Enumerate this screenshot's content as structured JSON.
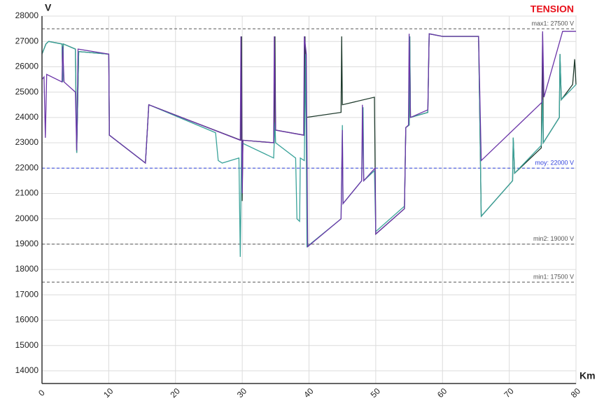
{
  "chart_data": {
    "type": "line",
    "title": "TENSION",
    "y_label": "V",
    "x_label": "Km",
    "title_color": "#e8101a",
    "grid": true,
    "xlim": [
      0,
      80
    ],
    "xticks": [
      0,
      10,
      20,
      30,
      40,
      50,
      60,
      70,
      80
    ],
    "ylim": [
      13500,
      28000
    ],
    "yticks": [
      14000,
      15000,
      16000,
      17000,
      18000,
      19000,
      20000,
      21000,
      22000,
      23000,
      24000,
      25000,
      26000,
      27000,
      28000
    ],
    "reference_lines": [
      {
        "value": 27500,
        "label": "max1: 27500 V",
        "color": "#555555"
      },
      {
        "value": 22000,
        "label": "moy: 22000 V",
        "color": "#3344dd"
      },
      {
        "value": 19000,
        "label": "min2: 19000 V",
        "color": "#555555"
      },
      {
        "value": 17500,
        "label": "min1: 17500 V",
        "color": "#555555"
      }
    ],
    "series": [
      {
        "color": "#1e3a2c",
        "x": [
          0,
          0.6,
          1,
          3,
          3.1,
          3.2,
          5,
          5.2,
          5.5,
          10,
          10.1,
          15.5,
          16,
          29.8,
          29.9,
          30,
          30.1,
          34.8,
          34.9,
          35,
          39.3,
          39.4,
          39.6,
          44.8,
          44.9,
          45,
          49.8,
          50,
          54.3,
          54.5,
          55,
          55.1,
          55.2,
          57.8,
          58,
          60,
          65.4,
          65.8,
          70.5,
          70.6,
          70.8,
          74.8,
          75,
          75.1,
          77.5,
          77.6,
          77.8,
          79.5,
          79.8,
          80
        ],
        "values": [
          26500,
          26900,
          27000,
          26900,
          25400,
          26900,
          26700,
          22600,
          26600,
          26500,
          23300,
          22200,
          24500,
          23100,
          27200,
          20700,
          23100,
          23000,
          27200,
          23500,
          23300,
          27200,
          24000,
          24200,
          27200,
          24500,
          24800,
          19400,
          20400,
          23600,
          23700,
          27200,
          24000,
          24200,
          27300,
          27200,
          27200,
          20100,
          21500,
          23200,
          21800,
          22800,
          27300,
          23000,
          24000,
          26500,
          24700,
          25300,
          26300,
          25300
        ]
      },
      {
        "color": "#3aa39a",
        "x": [
          0,
          0.6,
          1,
          3,
          3.1,
          3.2,
          5,
          5.2,
          5.5,
          10,
          10.1,
          15.5,
          16,
          26,
          26.4,
          27,
          29.5,
          29.7,
          29.9,
          34.7,
          34.9,
          35,
          38,
          38.2,
          38.6,
          38.7,
          39.3,
          39.5,
          39.7,
          44.8,
          45,
          45.1,
          47.9,
          48.1,
          48.2,
          49.8,
          50,
          54.3,
          54.5,
          55,
          55.1,
          55.2,
          57.8,
          58,
          60,
          65.4,
          65.8,
          70.5,
          70.6,
          70.8,
          74.8,
          75,
          75.1,
          77.5,
          77.6,
          77.8,
          80
        ],
        "values": [
          26500,
          26900,
          27000,
          26900,
          25400,
          26900,
          26700,
          22600,
          26600,
          26500,
          23300,
          22200,
          24500,
          23400,
          22300,
          22200,
          22400,
          18500,
          23000,
          22400,
          23800,
          23000,
          22400,
          20000,
          19900,
          22400,
          22300,
          26500,
          18900,
          20000,
          23700,
          20600,
          21500,
          24400,
          21500,
          21900,
          19500,
          20500,
          23600,
          23700,
          27200,
          24000,
          24200,
          27300,
          27200,
          27200,
          20100,
          21500,
          23200,
          21800,
          22900,
          24700,
          23000,
          24000,
          26500,
          24700,
          25300
        ]
      },
      {
        "color": "#6b35a8",
        "x": [
          0,
          0.3,
          0.5,
          0.7,
          3,
          3.1,
          3.3,
          5,
          5.2,
          5.4,
          10,
          10.1,
          15.5,
          16,
          29.7,
          29.8,
          30,
          30.1,
          34.7,
          34.8,
          35,
          39.2,
          39.3,
          39.6,
          39.8,
          44.8,
          45,
          45.1,
          47.9,
          48,
          48.2,
          49.9,
          50,
          54.3,
          54.5,
          54.9,
          55,
          55.2,
          57.8,
          58,
          60,
          65.4,
          65.8,
          66.2,
          74.9,
          75,
          75.2,
          78,
          80
        ],
        "values": [
          25500,
          25600,
          23200,
          25700,
          25400,
          26800,
          25400,
          25000,
          22700,
          26700,
          26500,
          23300,
          22200,
          24500,
          23100,
          27200,
          21000,
          23100,
          23000,
          27200,
          23500,
          23300,
          27200,
          26500,
          18900,
          20000,
          23500,
          20600,
          21500,
          24500,
          21500,
          22000,
          19400,
          20400,
          23600,
          23700,
          27300,
          24000,
          24300,
          27300,
          27200,
          27200,
          22300,
          22400,
          24600,
          27400,
          24800,
          27400,
          27400
        ]
      }
    ]
  }
}
